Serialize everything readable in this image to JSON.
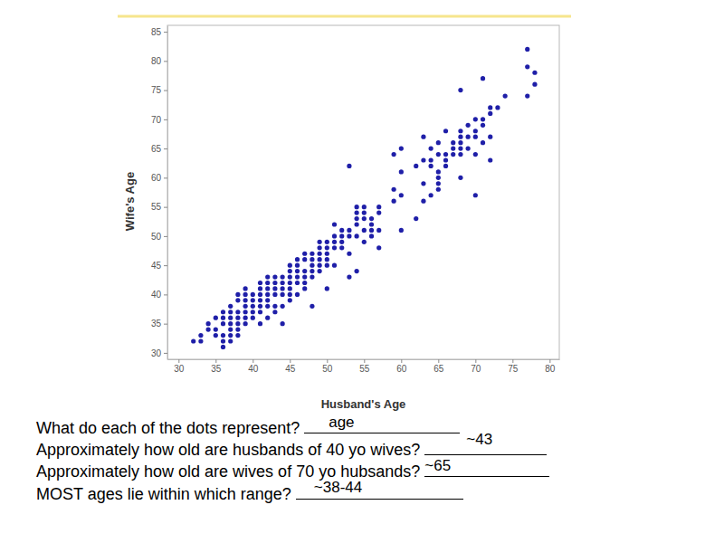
{
  "chart_data": {
    "type": "scatter",
    "x_label": "Husband's Age",
    "y_label": "Wife's Age",
    "color": "#1f1fa8",
    "marker": "circle",
    "grid": false,
    "xlim": [
      28.5,
      81.3
    ],
    "ylim": [
      28.9,
      86.1
    ],
    "xticks": [
      30,
      35,
      40,
      45,
      50,
      55,
      60,
      65,
      70,
      75,
      80
    ],
    "yticks": [
      30,
      35,
      40,
      45,
      50,
      55,
      60,
      65,
      70,
      75,
      80,
      85
    ],
    "x": [
      32,
      33,
      33,
      34,
      34,
      35,
      35,
      35,
      36,
      36,
      36,
      36,
      36,
      36,
      37,
      37,
      37,
      37,
      37,
      37,
      37,
      38,
      38,
      38,
      38,
      38,
      38,
      38,
      39,
      39,
      39,
      39,
      39,
      39,
      39,
      40,
      40,
      40,
      40,
      40,
      41,
      41,
      41,
      41,
      41,
      41,
      41,
      42,
      42,
      42,
      42,
      42,
      42,
      42,
      43,
      43,
      43,
      43,
      43,
      43,
      44,
      44,
      44,
      44,
      44,
      44,
      45,
      45,
      45,
      45,
      45,
      45,
      45,
      46,
      46,
      46,
      46,
      46,
      46,
      47,
      47,
      47,
      47,
      47,
      47,
      48,
      48,
      48,
      48,
      48,
      48,
      49,
      49,
      49,
      49,
      49,
      49,
      50,
      50,
      50,
      50,
      50,
      50,
      51,
      51,
      51,
      51,
      51,
      52,
      52,
      52,
      52,
      53,
      53,
      53,
      53,
      53,
      54,
      54,
      54,
      54,
      54,
      54,
      55,
      55,
      55,
      55,
      55,
      56,
      56,
      56,
      56,
      57,
      57,
      57,
      57,
      59,
      59,
      59,
      60,
      60,
      60,
      60,
      62,
      62,
      63,
      63,
      63,
      63,
      64,
      64,
      64,
      64,
      65,
      65,
      65,
      65,
      65,
      65,
      66,
      66,
      66,
      66,
      67,
      67,
      67,
      68,
      68,
      68,
      68,
      68,
      68,
      68,
      69,
      69,
      69,
      70,
      70,
      70,
      70,
      70,
      71,
      71,
      71,
      71,
      72,
      72,
      72,
      72,
      73,
      74,
      77,
      77,
      77,
      78,
      78
    ],
    "y": [
      32,
      32,
      33,
      34,
      35,
      33,
      34,
      36,
      31,
      32,
      33,
      35,
      36,
      37,
      32,
      33,
      34,
      35,
      36,
      37,
      38,
      33,
      34,
      35,
      36,
      37,
      39,
      40,
      35,
      36,
      37,
      38,
      39,
      40,
      41,
      36,
      37,
      38,
      39,
      40,
      35,
      37,
      38,
      39,
      40,
      41,
      42,
      36,
      38,
      39,
      40,
      41,
      42,
      43,
      37,
      38,
      40,
      41,
      42,
      43,
      35,
      38,
      40,
      41,
      42,
      43,
      39,
      40,
      41,
      42,
      43,
      44,
      45,
      40,
      42,
      43,
      44,
      45,
      46,
      41,
      42,
      43,
      44,
      46,
      47,
      38,
      43,
      44,
      45,
      46,
      47,
      44,
      45,
      46,
      47,
      48,
      49,
      41,
      45,
      46,
      47,
      48,
      49,
      45,
      48,
      49,
      50,
      52,
      48,
      49,
      50,
      51,
      43,
      47,
      50,
      51,
      62,
      44,
      50,
      52,
      53,
      54,
      55,
      49,
      51,
      53,
      54,
      55,
      50,
      51,
      52,
      53,
      48,
      51,
      54,
      55,
      56,
      58,
      64,
      51,
      57,
      61,
      65,
      53,
      62,
      56,
      59,
      63,
      67,
      57,
      62,
      63,
      65,
      58,
      59,
      60,
      61,
      64,
      66,
      62,
      63,
      64,
      68,
      64,
      65,
      66,
      60,
      64,
      65,
      66,
      67,
      68,
      75,
      65,
      67,
      69,
      57,
      64,
      67,
      68,
      70,
      66,
      69,
      70,
      77,
      63,
      67,
      71,
      72,
      72,
      74,
      74,
      79,
      82,
      76,
      78
    ]
  },
  "questions": [
    {
      "text": "What do each of the dots represent?",
      "answer": "age"
    },
    {
      "text": "Approximately how old are husbands of 40 yo wives?",
      "answer": "~43"
    },
    {
      "text": "Approximately how old are wives of 70 yo hubsands?",
      "answer": "~65"
    },
    {
      "text": "MOST ages lie within which range?",
      "answer": "~38-44"
    }
  ]
}
